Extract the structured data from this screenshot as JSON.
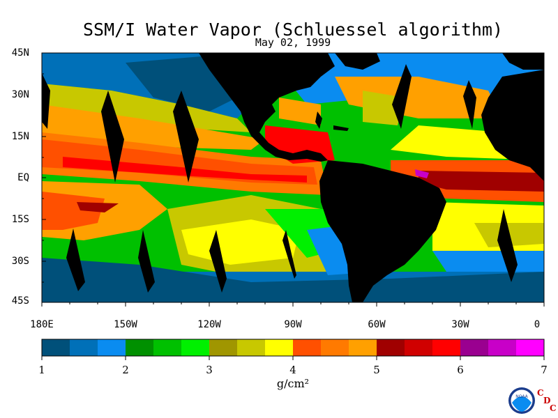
{
  "title": "SSM/I Water Vapor (Schluessel algorithm)",
  "date": "May 02, 1999",
  "y_axis": {
    "ticks": [
      "45N",
      "30N",
      "15N",
      "EQ",
      "15S",
      "30S",
      "45S"
    ]
  },
  "x_axis": {
    "ticks": [
      "180E",
      "150W",
      "120W",
      "90W",
      "60W",
      "30W",
      "0"
    ]
  },
  "colorbar": {
    "ticks": [
      "1",
      "2",
      "3",
      "4",
      "5",
      "6",
      "7"
    ],
    "unit": "g/cm²",
    "min": 1,
    "max": 7,
    "colors": [
      "#00507a",
      "#0070b8",
      "#0a8cf0",
      "#009000",
      "#00c000",
      "#00f000",
      "#a09600",
      "#c8c800",
      "#ffff00",
      "#ff5000",
      "#ff7a00",
      "#ffa000",
      "#a00000",
      "#d00000",
      "#ff0000",
      "#9a0090",
      "#c800c8",
      "#ff00ff"
    ]
  },
  "logo": {
    "text": "NOAA",
    "letters": [
      "C",
      "D",
      "C"
    ]
  }
}
